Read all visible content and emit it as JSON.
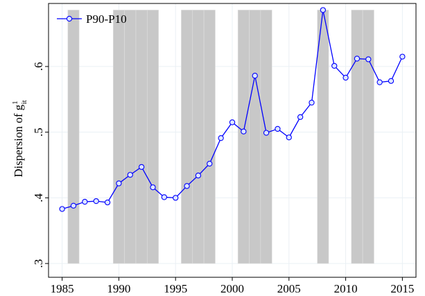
{
  "chart_data": {
    "type": "line",
    "ylabel": "Dispersion of g",
    "ylabel_sup": "1",
    "ylabel_sub": "it",
    "x": [
      1985,
      1986,
      1987,
      1988,
      1989,
      1990,
      1991,
      1992,
      1993,
      1994,
      1995,
      1996,
      1997,
      1998,
      1999,
      2000,
      2001,
      2002,
      2003,
      2004,
      2005,
      2006,
      2007,
      2008,
      2009,
      2010,
      2011,
      2012,
      2013,
      2014,
      2015
    ],
    "series": [
      {
        "name": "P90-P10",
        "color": "#0000ff",
        "values": [
          0.383,
          0.388,
          0.394,
          0.395,
          0.393,
          0.422,
          0.435,
          0.447,
          0.416,
          0.401,
          0.4,
          0.418,
          0.434,
          0.452,
          0.491,
          0.515,
          0.501,
          0.586,
          0.499,
          0.505,
          0.492,
          0.523,
          0.545,
          0.686,
          0.601,
          0.583,
          0.612,
          0.611,
          0.576,
          0.578,
          0.615
        ]
      }
    ],
    "shaded_years": [
      1986,
      1990,
      1991,
      1992,
      1993,
      1996,
      1997,
      1998,
      2001,
      2002,
      2003,
      2008,
      2011,
      2012
    ],
    "shade_range": [
      0.3,
      0.686
    ],
    "shade_color": "#c8c8c8",
    "xlim": [
      1983.8,
      2016.2
    ],
    "ylim": [
      0.279,
      0.696
    ],
    "xticks": [
      1985,
      1990,
      1995,
      2000,
      2005,
      2010,
      2015
    ],
    "yticks": [
      {
        "value": 0.3,
        "label": ".3"
      },
      {
        "value": 0.4,
        "label": ".4"
      },
      {
        "value": 0.5,
        "label": ".5"
      },
      {
        "value": 0.6,
        "label": ".6"
      }
    ],
    "grid": true,
    "legend": "top-left"
  }
}
